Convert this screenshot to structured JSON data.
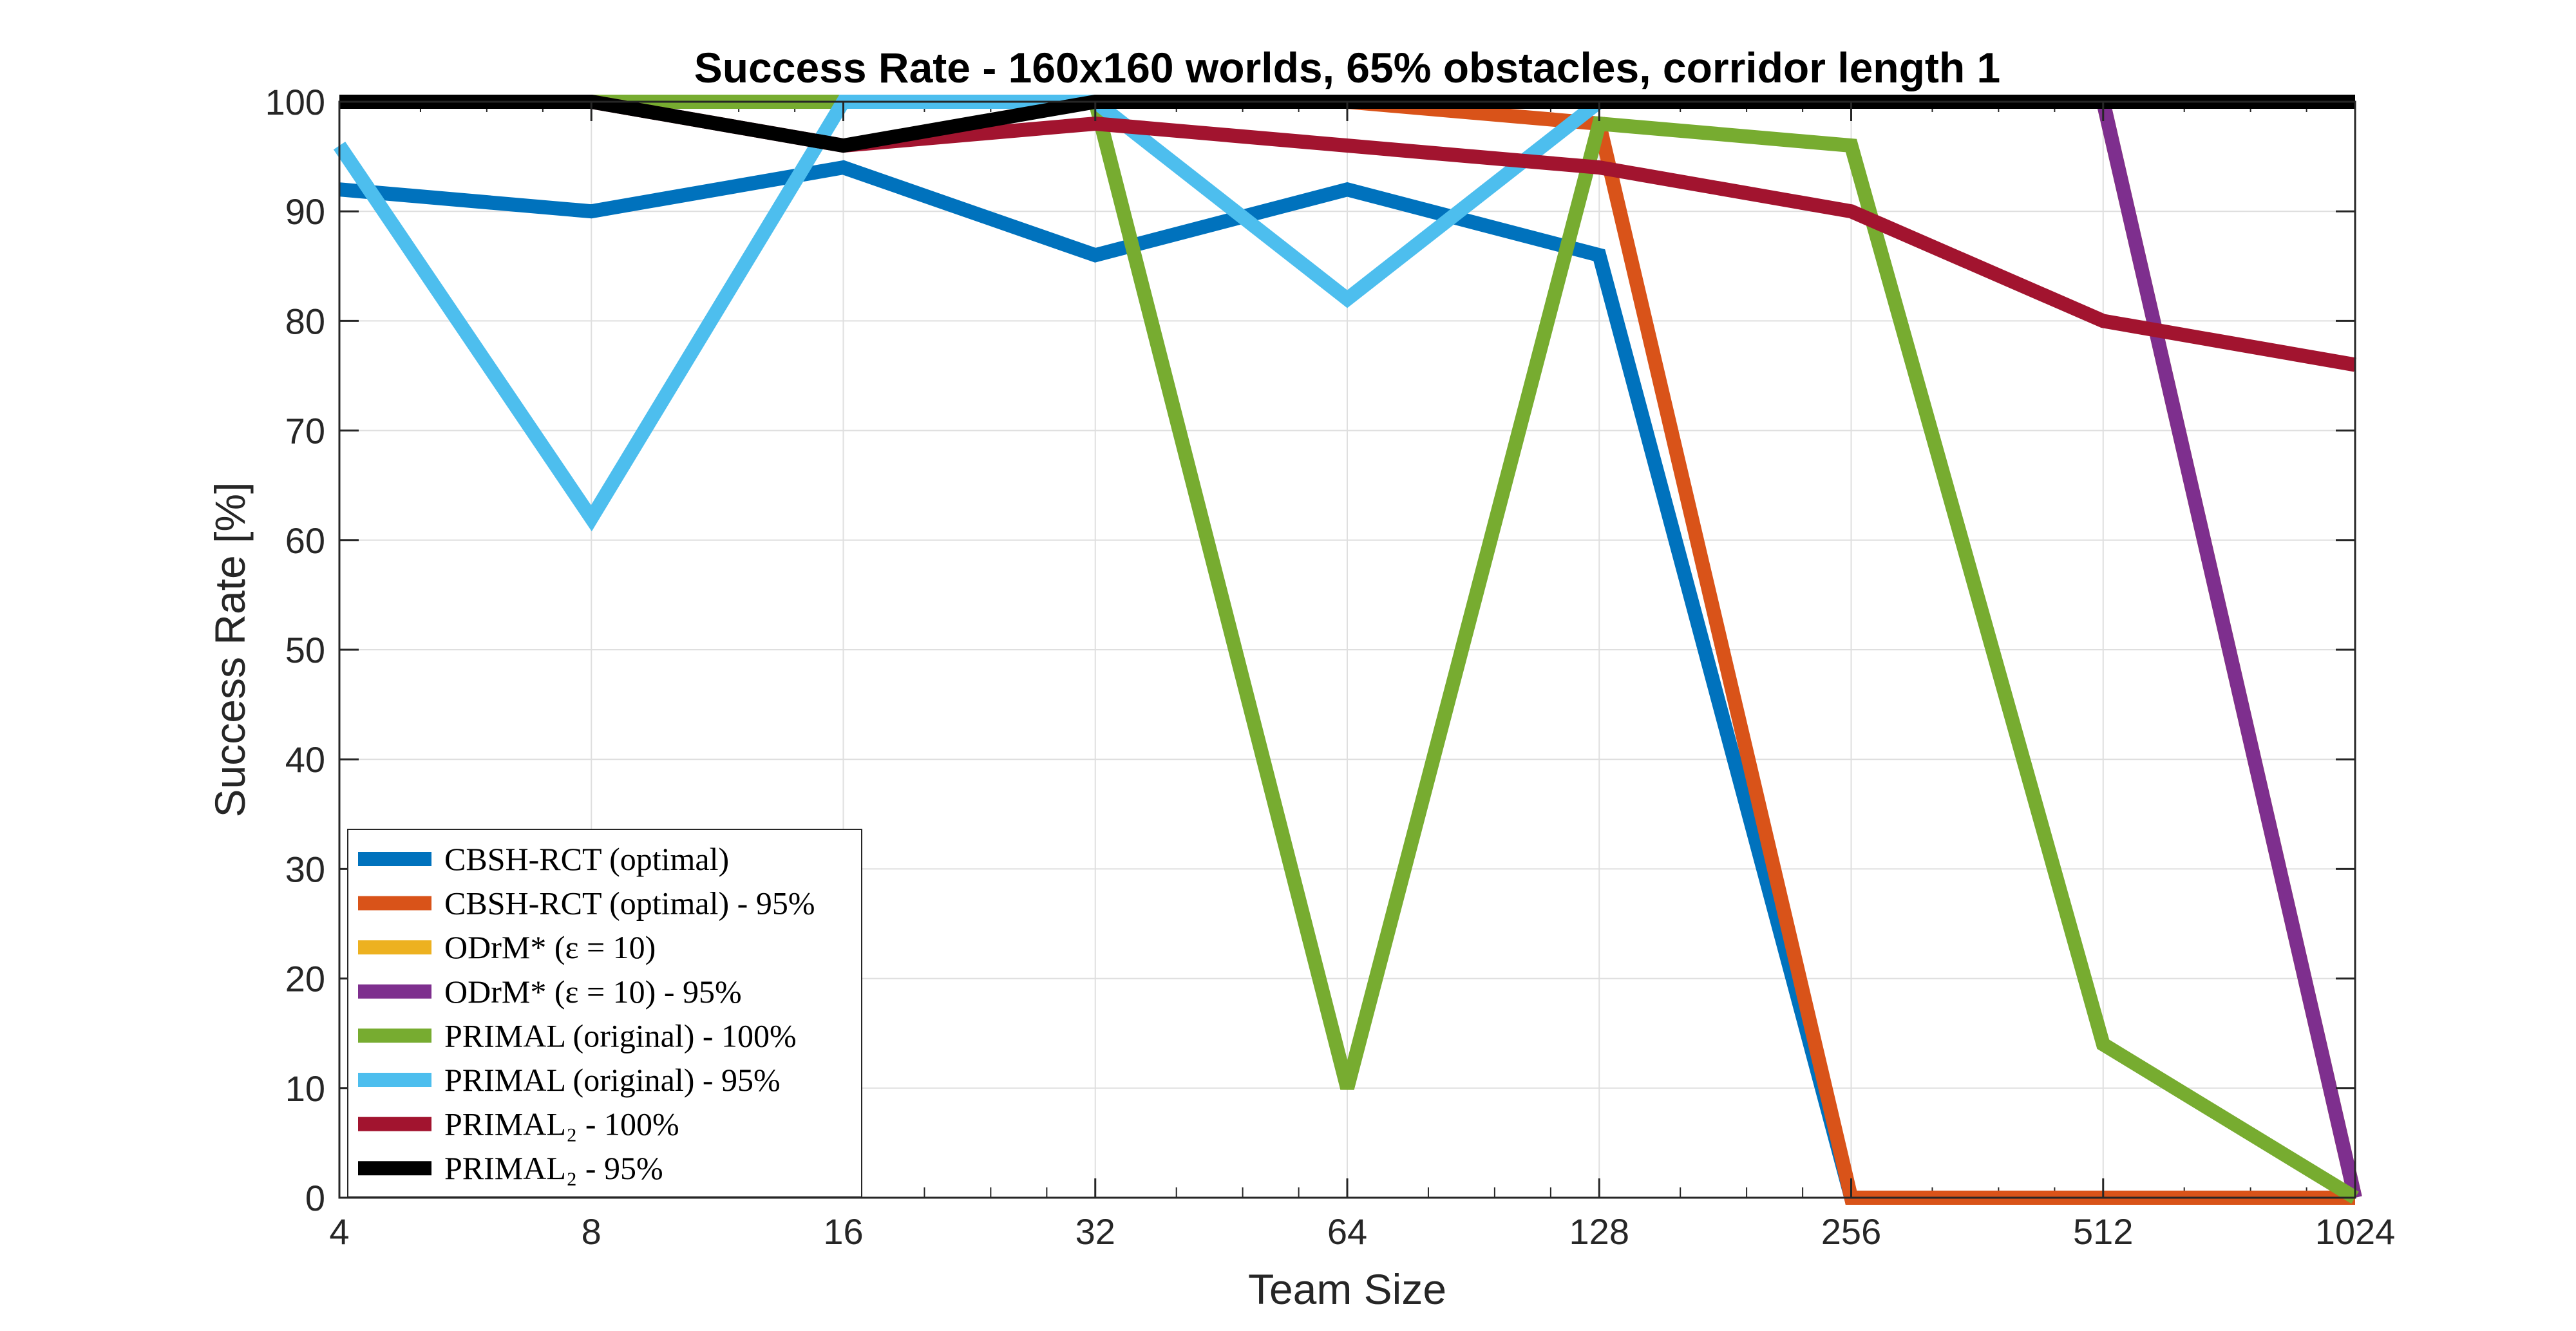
{
  "chart_data": {
    "type": "line",
    "title": "Success Rate - 160x160 worlds, 65% obstacles, corridor length 1",
    "xlabel": "Team Size",
    "ylabel": "Success Rate [%]",
    "x_scale": "log2",
    "xlim": [
      4,
      1024
    ],
    "ylim": [
      0,
      100
    ],
    "x_ticks": [
      4,
      8,
      16,
      32,
      64,
      128,
      256,
      512,
      1024
    ],
    "y_ticks": [
      0,
      10,
      20,
      30,
      40,
      50,
      60,
      70,
      80,
      90,
      100
    ],
    "grid": true,
    "legend_position": "bottom-left",
    "series": [
      {
        "name": "CBSH-RCT (optimal)",
        "color": "#0072BD",
        "x": [
          4,
          8,
          16,
          32,
          64,
          128,
          256,
          512,
          1024
        ],
        "values": [
          92,
          90,
          94,
          86,
          92,
          86,
          0,
          0,
          0
        ]
      },
      {
        "name": "CBSH-RCT (optimal) - 95%",
        "color": "#D95319",
        "x": [
          4,
          8,
          16,
          32,
          64,
          128,
          256,
          512,
          1024
        ],
        "values": [
          100,
          100,
          100,
          100,
          100,
          98,
          0,
          0,
          0
        ]
      },
      {
        "name": "ODrM* (ε = 10)",
        "color": "#EDB120",
        "x": [
          4,
          8,
          16,
          32,
          64,
          128,
          256,
          512,
          1024
        ],
        "values": [
          100,
          100,
          100,
          100,
          100,
          100,
          100,
          100,
          0
        ]
      },
      {
        "name": "ODrM* (ε = 10) - 95%",
        "color": "#7E2F8E",
        "x": [
          4,
          8,
          16,
          32,
          64,
          128,
          256,
          512,
          1024
        ],
        "values": [
          100,
          100,
          100,
          100,
          100,
          100,
          100,
          100,
          0
        ]
      },
      {
        "name": "PRIMAL (original) - 100%",
        "color": "#77AC30",
        "x": [
          4,
          8,
          16,
          32,
          64,
          128,
          256,
          512,
          1024
        ],
        "values": [
          100,
          100,
          100,
          100,
          10,
          98,
          96,
          14,
          0
        ]
      },
      {
        "name": "PRIMAL (original) - 95%",
        "color": "#4DBEEE",
        "x": [
          4,
          8,
          16,
          32,
          64,
          128
        ],
        "values": [
          96,
          62,
          100,
          100,
          82,
          100
        ]
      },
      {
        "name": "PRIMAL₂ - 100%",
        "color": "#A2142F",
        "x": [
          4,
          8,
          16,
          32,
          64,
          128,
          256,
          512,
          1024
        ],
        "values": [
          100,
          100,
          96,
          98,
          96,
          94,
          90,
          80,
          76
        ]
      },
      {
        "name": "PRIMAL₂ - 95%",
        "color": "#000000",
        "x": [
          4,
          8,
          16,
          32,
          64,
          128,
          256,
          512,
          1024
        ],
        "values": [
          100,
          100,
          96,
          100,
          100,
          100,
          100,
          100,
          100
        ]
      }
    ]
  }
}
